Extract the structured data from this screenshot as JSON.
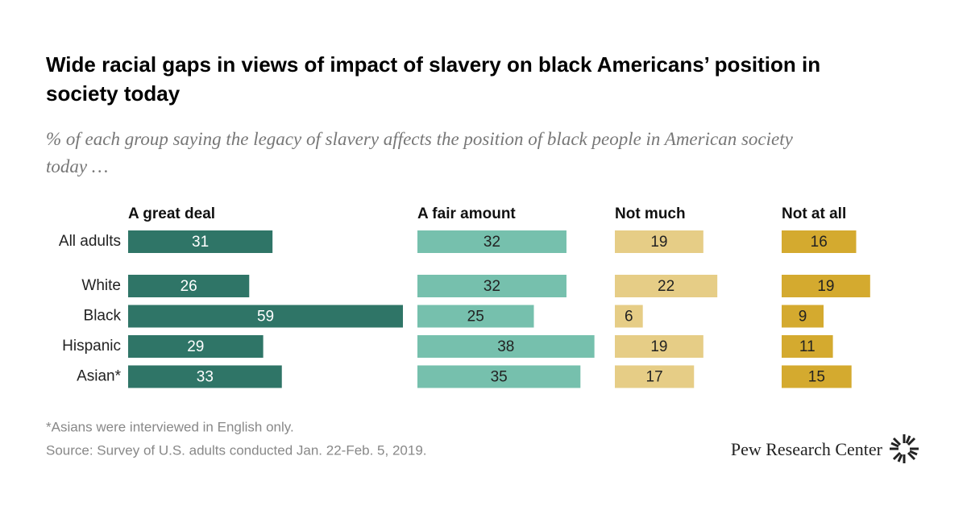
{
  "chart_data": {
    "type": "bar",
    "title": "Wide racial gaps in views of impact of slavery on black Americans’ position in society today",
    "subtitle": "% of each group saying the legacy of slavery affects the position of black people in American society today …",
    "categories": [
      "All adults",
      "White",
      "Black",
      "Hispanic",
      "Asian*"
    ],
    "series": [
      {
        "name": "A great deal",
        "color": "#2f7567",
        "values": [
          31,
          26,
          59,
          29,
          33
        ]
      },
      {
        "name": "A fair amount",
        "color": "#76c0ad",
        "values": [
          32,
          32,
          25,
          38,
          35
        ]
      },
      {
        "name": "Not much",
        "color": "#e6cd86",
        "values": [
          19,
          22,
          6,
          19,
          17
        ]
      },
      {
        "name": "Not at all",
        "color": "#d4aa2f",
        "values": [
          16,
          19,
          9,
          11,
          15
        ]
      }
    ],
    "notes": [
      "*Asians were interviewed in English only.",
      "Source: Survey of U.S. adults conducted Jan. 22-Feb. 5, 2019."
    ],
    "logo": "Pew Research Center"
  }
}
